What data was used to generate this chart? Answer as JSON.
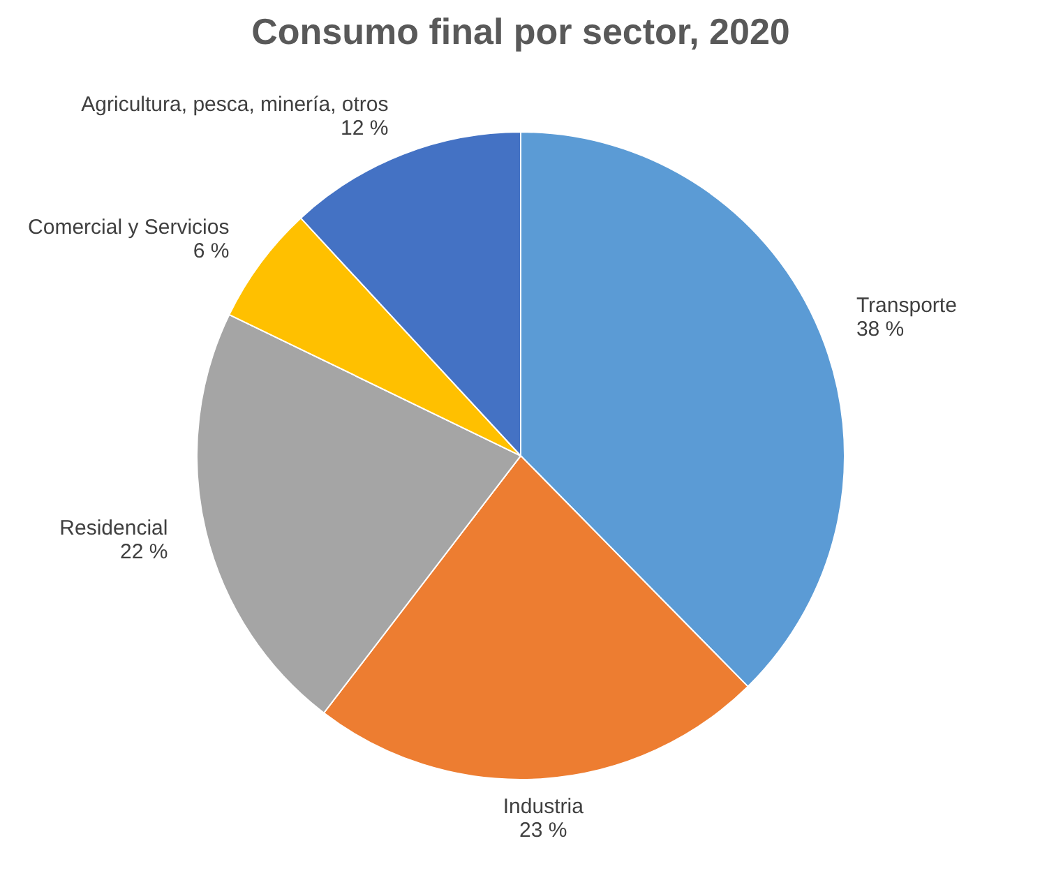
{
  "chart_data": {
    "type": "pie",
    "title": "Consumo final por sector, 2020",
    "categories": [
      "Transporte",
      "Industria",
      "Residencial",
      "Comercial y Servicios",
      "Agricultura, pesca, minería, otros"
    ],
    "values": [
      38,
      23,
      22,
      6,
      12
    ],
    "value_labels": [
      "38 %",
      "23 %",
      "22 %",
      "6 %",
      "12 %"
    ],
    "colors": [
      "#5b9bd5",
      "#ed7d31",
      "#a5a5a5",
      "#ffc000",
      "#4472c4"
    ]
  }
}
